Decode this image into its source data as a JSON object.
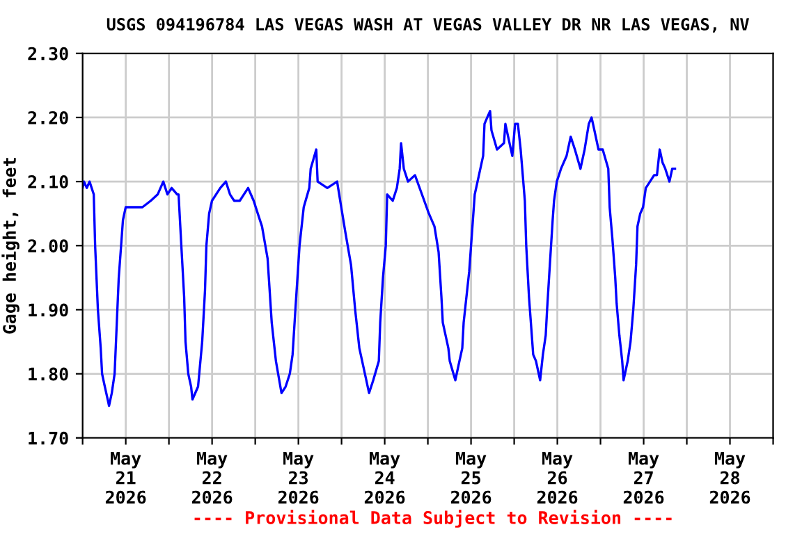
{
  "chart_data": {
    "type": "line",
    "title": "USGS 094196784 LAS VEGAS WASH AT VEGAS VALLEY DR NR LAS VEGAS, NV",
    "ylabel": "Gage height, feet",
    "annotations": [
      "---- Provisional Data Subject to Revision ----"
    ],
    "xlim": [
      "2026-05-21T00:00",
      "2026-05-29T00:00"
    ],
    "xticks": [
      {
        "value": "2026-05-21T00:00",
        "label": null
      },
      {
        "value": "2026-05-21T12:00",
        "label": "May\n21\n2026"
      },
      {
        "value": "2026-05-22T00:00",
        "label": null
      },
      {
        "value": "2026-05-22T12:00",
        "label": "May\n22\n2026"
      },
      {
        "value": "2026-05-23T00:00",
        "label": null
      },
      {
        "value": "2026-05-23T12:00",
        "label": "May\n23\n2026"
      },
      {
        "value": "2026-05-24T00:00",
        "label": null
      },
      {
        "value": "2026-05-24T12:00",
        "label": "May\n24\n2026"
      },
      {
        "value": "2026-05-25T00:00",
        "label": null
      },
      {
        "value": "2026-05-25T12:00",
        "label": "May\n25\n2026"
      },
      {
        "value": "2026-05-26T00:00",
        "label": null
      },
      {
        "value": "2026-05-26T12:00",
        "label": "May\n26\n2026"
      },
      {
        "value": "2026-05-27T00:00",
        "label": null
      },
      {
        "value": "2026-05-27T12:00",
        "label": "May\n27\n2026"
      },
      {
        "value": "2026-05-28T00:00",
        "label": null
      },
      {
        "value": "2026-05-28T12:00",
        "label": "May\n28\n2026"
      },
      {
        "value": "2026-05-29T00:00",
        "label": null
      }
    ],
    "ylim": [
      1.7,
      2.3
    ],
    "yticks": [
      {
        "value": 1.7,
        "label": "1.70"
      },
      {
        "value": 1.8,
        "label": "1.80"
      },
      {
        "value": 1.9,
        "label": "1.90"
      },
      {
        "value": 2.0,
        "label": "2.00"
      },
      {
        "value": 2.1,
        "label": "2.10"
      },
      {
        "value": 2.2,
        "label": "2.20"
      },
      {
        "value": 2.3,
        "label": "2.30"
      }
    ],
    "grid": true,
    "marker": "none",
    "line_style": "solid",
    "series": [
      {
        "color": "#0000ff",
        "x": [
          "2026-05-21T00:00",
          "2026-05-21T00:23",
          "2026-05-21T01:10",
          "2026-05-21T01:56",
          "2026-05-21T03:06",
          "2026-05-21T03:29",
          "2026-05-21T04:15",
          "2026-05-21T05:02",
          "2026-05-21T05:25",
          "2026-05-21T06:11",
          "2026-05-21T06:58",
          "2026-05-21T07:21",
          "2026-05-21T08:07",
          "2026-05-21T08:54",
          "2026-05-21T09:17",
          "2026-05-21T10:03",
          "2026-05-21T10:50",
          "2026-05-21T11:13",
          "2026-05-21T11:59",
          "2026-05-21T13:55",
          "2026-05-21T16:38",
          "2026-05-21T18:57",
          "2026-05-21T20:53",
          "2026-05-21T22:26",
          "2026-05-21T23:35",
          "2026-05-22T00:45",
          "2026-05-22T02:18",
          "2026-05-22T02:41",
          "2026-05-22T03:27",
          "2026-05-22T04:14",
          "2026-05-22T04:37",
          "2026-05-22T05:23",
          "2026-05-22T06:10",
          "2026-05-22T06:33",
          "2026-05-22T08:06",
          "2026-05-22T09:15",
          "2026-05-22T10:02",
          "2026-05-22T10:25",
          "2026-05-22T11:11",
          "2026-05-22T11:58",
          "2026-05-22T13:07",
          "2026-05-22T14:17",
          "2026-05-22T15:50",
          "2026-05-22T16:59",
          "2026-05-22T18:09",
          "2026-05-22T19:42",
          "2026-05-22T20:51",
          "2026-05-22T22:01",
          "2026-05-22T23:34",
          "2026-05-23T00:43",
          "2026-05-23T01:53",
          "2026-05-23T03:26",
          "2026-05-23T04:35",
          "2026-05-23T05:45",
          "2026-05-23T07:18",
          "2026-05-23T08:27",
          "2026-05-23T09:37",
          "2026-05-23T10:23",
          "2026-05-23T11:10",
          "2026-05-23T12:19",
          "2026-05-23T13:29",
          "2026-05-23T15:02",
          "2026-05-23T15:25",
          "2026-05-23T16:58",
          "2026-05-23T17:21",
          "2026-05-23T20:03",
          "2026-05-23T22:46",
          "2026-05-23T23:55",
          "2026-05-24T01:05",
          "2026-05-24T02:38",
          "2026-05-24T03:47",
          "2026-05-24T04:57",
          "2026-05-24T06:30",
          "2026-05-24T07:39",
          "2026-05-24T08:49",
          "2026-05-24T10:22",
          "2026-05-24T10:45",
          "2026-05-24T11:31",
          "2026-05-24T12:18",
          "2026-05-24T12:41",
          "2026-05-24T14:14",
          "2026-05-24T15:23",
          "2026-05-24T16:10",
          "2026-05-24T16:33",
          "2026-05-24T17:19",
          "2026-05-24T18:29",
          "2026-05-24T20:25",
          "2026-05-24T22:21",
          "2026-05-25T00:17",
          "2026-05-25T01:50",
          "2026-05-25T02:59",
          "2026-05-25T03:46",
          "2026-05-25T04:09",
          "2026-05-25T05:42",
          "2026-05-25T06:05",
          "2026-05-25T07:38",
          "2026-05-25T08:47",
          "2026-05-25T09:34",
          "2026-05-25T09:57",
          "2026-05-25T11:30",
          "2026-05-25T12:16",
          "2026-05-25T13:02",
          "2026-05-25T13:49",
          "2026-05-25T15:22",
          "2026-05-25T15:45",
          "2026-05-25T16:31",
          "2026-05-25T17:18",
          "2026-05-25T17:41",
          "2026-05-25T19:14",
          "2026-05-25T21:10",
          "2026-05-25T21:33",
          "2026-05-25T22:19",
          "2026-05-25T23:29",
          "2026-05-26T00:15",
          "2026-05-26T01:02",
          "2026-05-26T01:48",
          "2026-05-26T02:58",
          "2026-05-26T03:21",
          "2026-05-26T04:07",
          "2026-05-26T04:54",
          "2026-05-26T05:17",
          "2026-05-26T06:03",
          "2026-05-26T07:13",
          "2026-05-26T07:59",
          "2026-05-26T08:46",
          "2026-05-26T09:09",
          "2026-05-26T09:55",
          "2026-05-26T10:42",
          "2026-05-26T11:05",
          "2026-05-26T11:51",
          "2026-05-26T13:01",
          "2026-05-26T14:34",
          "2026-05-26T15:43",
          "2026-05-26T16:53",
          "2026-05-26T18:26",
          "2026-05-26T19:35",
          "2026-05-26T20:45",
          "2026-05-26T21:31",
          "2026-05-26T22:18",
          "2026-05-26T23:27",
          "2026-05-27T00:37",
          "2026-05-27T02:10",
          "2026-05-27T02:33",
          "2026-05-27T03:19",
          "2026-05-27T04:06",
          "2026-05-27T04:29",
          "2026-05-27T05:15",
          "2026-05-27T06:02",
          "2026-05-27T06:25",
          "2026-05-27T07:34",
          "2026-05-27T08:21",
          "2026-05-27T09:07",
          "2026-05-27T09:54",
          "2026-05-27T10:17",
          "2026-05-27T11:03",
          "2026-05-27T11:50",
          "2026-05-27T12:36",
          "2026-05-27T13:46",
          "2026-05-27T14:55",
          "2026-05-27T15:42",
          "2026-05-27T16:28",
          "2026-05-27T17:14",
          "2026-05-27T18:01",
          "2026-05-27T19:10",
          "2026-05-27T19:57",
          "2026-05-27T20:43"
        ],
        "values": [
          2.09,
          2.1,
          2.09,
          2.1,
          2.08,
          2.0,
          1.9,
          1.84,
          1.8,
          1.78,
          1.76,
          1.75,
          1.77,
          1.8,
          1.85,
          1.95,
          2.01,
          2.04,
          2.06,
          2.06,
          2.06,
          2.07,
          2.08,
          2.1,
          2.08,
          2.09,
          2.08,
          2.08,
          2.0,
          1.92,
          1.85,
          1.8,
          1.78,
          1.76,
          1.78,
          1.85,
          1.93,
          2.0,
          2.05,
          2.07,
          2.08,
          2.09,
          2.1,
          2.08,
          2.07,
          2.07,
          2.08,
          2.09,
          2.07,
          2.05,
          2.03,
          1.98,
          1.88,
          1.82,
          1.77,
          1.78,
          1.8,
          1.83,
          1.9,
          2.0,
          2.06,
          2.09,
          2.12,
          2.15,
          2.1,
          2.09,
          2.1,
          2.06,
          2.02,
          1.97,
          1.9,
          1.84,
          1.8,
          1.77,
          1.79,
          1.82,
          1.88,
          1.95,
          2.0,
          2.08,
          2.07,
          2.09,
          2.12,
          2.16,
          2.12,
          2.1,
          2.11,
          2.08,
          2.05,
          2.03,
          1.99,
          1.92,
          1.88,
          1.84,
          1.82,
          1.79,
          1.82,
          1.84,
          1.88,
          1.96,
          2.02,
          2.08,
          2.1,
          2.14,
          2.19,
          2.2,
          2.21,
          2.18,
          2.15,
          2.16,
          2.19,
          2.17,
          2.14,
          2.19,
          2.19,
          2.15,
          2.07,
          2.0,
          1.92,
          1.86,
          1.83,
          1.82,
          1.79,
          1.83,
          1.86,
          1.9,
          1.97,
          2.04,
          2.07,
          2.1,
          2.12,
          2.14,
          2.17,
          2.15,
          2.12,
          2.15,
          2.19,
          2.2,
          2.18,
          2.15,
          2.15,
          2.12,
          2.06,
          2.01,
          1.95,
          1.91,
          1.86,
          1.82,
          1.79,
          1.82,
          1.85,
          1.9,
          1.97,
          2.03,
          2.05,
          2.06,
          2.09,
          2.1,
          2.11,
          2.11,
          2.15,
          2.13,
          2.12,
          2.1,
          2.12,
          2.12
        ]
      }
    ]
  }
}
